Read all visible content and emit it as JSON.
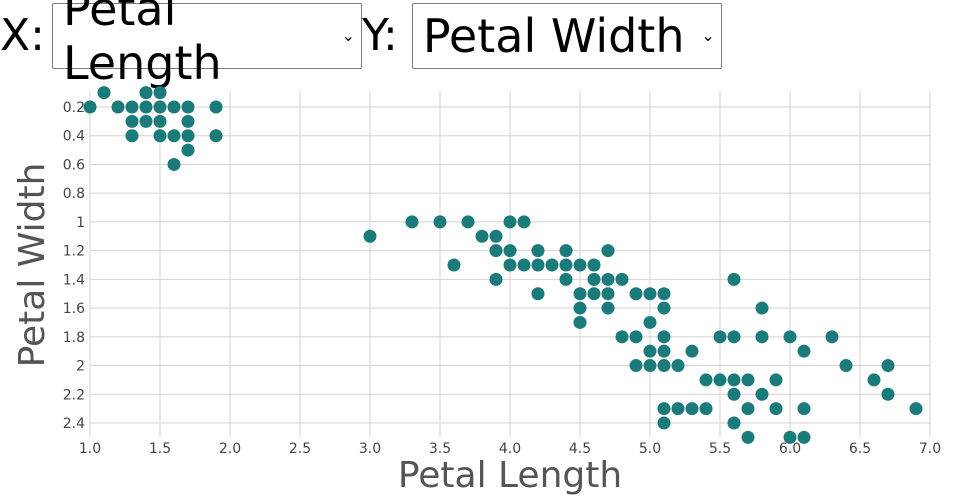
{
  "controls": {
    "x_prefix": "X:",
    "y_prefix": "Y:",
    "x_selected": "Petal Length",
    "y_selected": "Petal Width",
    "chevron_icon": "chevron-down-icon"
  },
  "colors": {
    "point": "#1b7a7a",
    "grid": "#d3d3d3",
    "text": "#555555"
  },
  "chart_data": {
    "type": "scatter",
    "xlabel": "Petal Length",
    "ylabel": "Petal Width",
    "xlim": [
      1.0,
      7.0
    ],
    "ylim": [
      0.2,
      2.4
    ],
    "y_inverted": true,
    "grid": true,
    "x_ticks": [
      "1.0",
      "1.5",
      "2.0",
      "2.5",
      "3.0",
      "3.5",
      "4.0",
      "4.5",
      "5.0",
      "5.5",
      "6.0",
      "6.5",
      "7.0"
    ],
    "y_ticks": [
      "0.2",
      "0.4",
      "0.6",
      "0.8",
      "1",
      "1.2",
      "1.4",
      "1.6",
      "1.8",
      "2",
      "2.2",
      "2.4"
    ],
    "points": [
      [
        1.0,
        0.2
      ],
      [
        1.1,
        0.1
      ],
      [
        1.2,
        0.2
      ],
      [
        1.3,
        0.2
      ],
      [
        1.4,
        0.2
      ],
      [
        1.5,
        0.2
      ],
      [
        1.6,
        0.2
      ],
      [
        1.7,
        0.2
      ],
      [
        1.9,
        0.2
      ],
      [
        1.4,
        0.1
      ],
      [
        1.5,
        0.1
      ],
      [
        1.3,
        0.3
      ],
      [
        1.4,
        0.3
      ],
      [
        1.5,
        0.3
      ],
      [
        1.7,
        0.3
      ],
      [
        1.3,
        0.4
      ],
      [
        1.5,
        0.4
      ],
      [
        1.6,
        0.4
      ],
      [
        1.7,
        0.4
      ],
      [
        1.9,
        0.4
      ],
      [
        1.7,
        0.5
      ],
      [
        1.6,
        0.6
      ],
      [
        3.0,
        1.1
      ],
      [
        3.3,
        1.0
      ],
      [
        3.5,
        1.0
      ],
      [
        3.7,
        1.0
      ],
      [
        4.0,
        1.0
      ],
      [
        4.1,
        1.0
      ],
      [
        3.8,
        1.1
      ],
      [
        3.9,
        1.1
      ],
      [
        3.9,
        1.2
      ],
      [
        4.0,
        1.2
      ],
      [
        4.2,
        1.2
      ],
      [
        4.4,
        1.2
      ],
      [
        4.7,
        1.2
      ],
      [
        3.6,
        1.3
      ],
      [
        4.0,
        1.3
      ],
      [
        4.1,
        1.3
      ],
      [
        4.2,
        1.3
      ],
      [
        4.3,
        1.3
      ],
      [
        4.4,
        1.3
      ],
      [
        4.5,
        1.3
      ],
      [
        4.6,
        1.3
      ],
      [
        3.9,
        1.4
      ],
      [
        4.4,
        1.4
      ],
      [
        4.6,
        1.4
      ],
      [
        4.7,
        1.4
      ],
      [
        4.8,
        1.4
      ],
      [
        5.6,
        1.4
      ],
      [
        4.2,
        1.5
      ],
      [
        4.5,
        1.5
      ],
      [
        4.6,
        1.5
      ],
      [
        4.7,
        1.5
      ],
      [
        4.9,
        1.5
      ],
      [
        5.0,
        1.5
      ],
      [
        5.1,
        1.5
      ],
      [
        4.5,
        1.6
      ],
      [
        4.7,
        1.6
      ],
      [
        5.1,
        1.6
      ],
      [
        5.8,
        1.6
      ],
      [
        4.5,
        1.7
      ],
      [
        5.0,
        1.7
      ],
      [
        4.8,
        1.8
      ],
      [
        4.9,
        1.8
      ],
      [
        5.1,
        1.8
      ],
      [
        5.5,
        1.8
      ],
      [
        5.6,
        1.8
      ],
      [
        5.8,
        1.8
      ],
      [
        6.0,
        1.8
      ],
      [
        6.3,
        1.8
      ],
      [
        5.0,
        1.9
      ],
      [
        5.1,
        1.9
      ],
      [
        5.3,
        1.9
      ],
      [
        6.1,
        1.9
      ],
      [
        4.9,
        2.0
      ],
      [
        5.0,
        2.0
      ],
      [
        5.1,
        2.0
      ],
      [
        5.2,
        2.0
      ],
      [
        6.4,
        2.0
      ],
      [
        6.7,
        2.0
      ],
      [
        5.4,
        2.1
      ],
      [
        5.5,
        2.1
      ],
      [
        5.6,
        2.1
      ],
      [
        5.7,
        2.1
      ],
      [
        5.9,
        2.1
      ],
      [
        6.6,
        2.1
      ],
      [
        5.6,
        2.2
      ],
      [
        5.8,
        2.2
      ],
      [
        6.7,
        2.2
      ],
      [
        5.1,
        2.3
      ],
      [
        5.2,
        2.3
      ],
      [
        5.3,
        2.3
      ],
      [
        5.4,
        2.3
      ],
      [
        5.7,
        2.3
      ],
      [
        5.9,
        2.3
      ],
      [
        6.1,
        2.3
      ],
      [
        6.9,
        2.3
      ],
      [
        5.1,
        2.4
      ],
      [
        5.6,
        2.4
      ],
      [
        5.7,
        2.5
      ],
      [
        6.0,
        2.5
      ],
      [
        6.1,
        2.5
      ]
    ]
  }
}
